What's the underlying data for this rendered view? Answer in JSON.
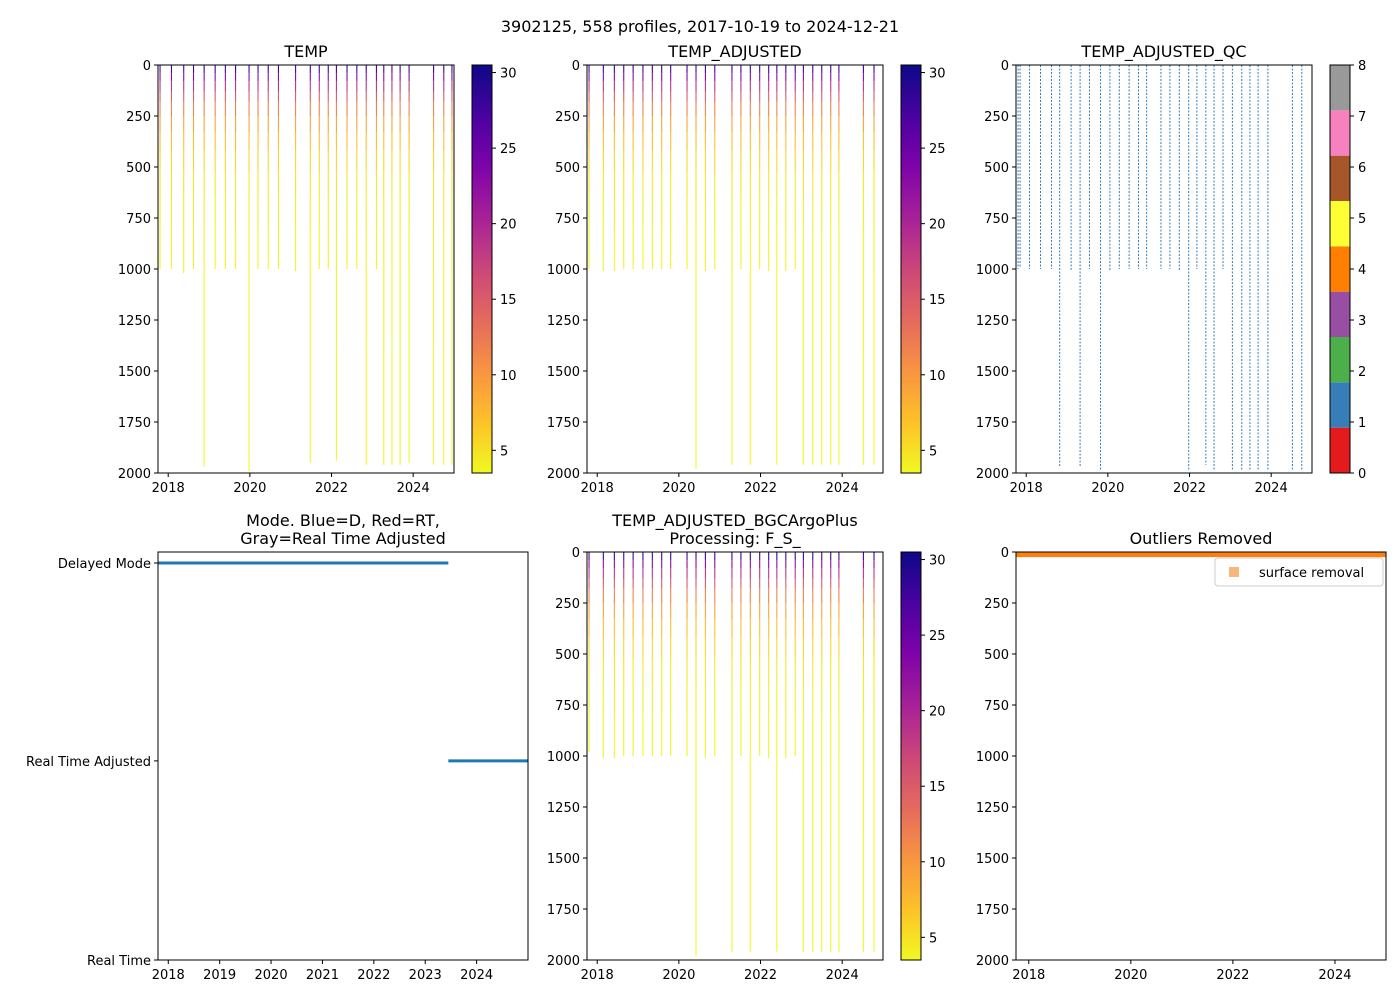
{
  "suptitle": "3902125, 558 profiles, 2017-10-19 to 2024-12-21",
  "colors": {
    "mode_line": "#1f77b4",
    "outlier": "#ff7f0e",
    "outlier_marker": "#f8b67a"
  },
  "chart_data": [
    {
      "id": "temp",
      "type": "heatmap",
      "title": "TEMP",
      "xlim": [
        2017.75,
        2025.0
      ],
      "ylim": [
        2000,
        0
      ],
      "xticks": [
        2018,
        2020,
        2022,
        2024
      ],
      "yticks": [
        0,
        250,
        500,
        750,
        1000,
        1250,
        1500,
        1750,
        2000
      ],
      "colorbar": {
        "colormap": "plasma_r",
        "range": [
          3.5,
          30.5
        ],
        "ticks": [
          5,
          10,
          15,
          20,
          25,
          30
        ]
      },
      "profiles": [
        {
          "t": 2017.8,
          "d": 1000
        },
        {
          "t": 2018.08,
          "d": 1000
        },
        {
          "t": 2018.38,
          "d": 1020
        },
        {
          "t": 2018.62,
          "d": 1000
        },
        {
          "t": 2018.88,
          "d": 1970
        },
        {
          "t": 2019.15,
          "d": 1000
        },
        {
          "t": 2019.4,
          "d": 1000
        },
        {
          "t": 2019.65,
          "d": 1000
        },
        {
          "t": 2019.98,
          "d": 1990
        },
        {
          "t": 2020.2,
          "d": 1000
        },
        {
          "t": 2020.45,
          "d": 1000
        },
        {
          "t": 2020.7,
          "d": 1000
        },
        {
          "t": 2021.12,
          "d": 1010
        },
        {
          "t": 2021.48,
          "d": 1950
        },
        {
          "t": 2021.7,
          "d": 1000
        },
        {
          "t": 2021.92,
          "d": 1000
        },
        {
          "t": 2022.12,
          "d": 1940
        },
        {
          "t": 2022.38,
          "d": 1000
        },
        {
          "t": 2022.62,
          "d": 1000
        },
        {
          "t": 2022.85,
          "d": 1960
        },
        {
          "t": 2023.1,
          "d": 1000
        },
        {
          "t": 2023.28,
          "d": 1960
        },
        {
          "t": 2023.48,
          "d": 1960
        },
        {
          "t": 2023.68,
          "d": 1960
        },
        {
          "t": 2023.9,
          "d": 1950
        },
        {
          "t": 2024.5,
          "d": 1960
        },
        {
          "t": 2024.75,
          "d": 1960
        },
        {
          "t": 2024.95,
          "d": 1960
        }
      ]
    },
    {
      "id": "temp_adj",
      "type": "heatmap",
      "title": "TEMP_ADJUSTED",
      "xlim": [
        2017.75,
        2025.0
      ],
      "ylim": [
        2000,
        0
      ],
      "xticks": [
        2018,
        2020,
        2022,
        2024
      ],
      "yticks": [
        0,
        250,
        500,
        750,
        1000,
        1250,
        1500,
        1750,
        2000
      ],
      "colorbar": {
        "colormap": "plasma_r",
        "range": [
          3.5,
          30.5
        ],
        "ticks": [
          5,
          10,
          15,
          20,
          25,
          30
        ]
      },
      "profiles": [
        {
          "t": 2017.8,
          "d": 1000
        },
        {
          "t": 2018.15,
          "d": 1010
        },
        {
          "t": 2018.42,
          "d": 1010
        },
        {
          "t": 2018.65,
          "d": 1000
        },
        {
          "t": 2018.88,
          "d": 1000
        },
        {
          "t": 2019.12,
          "d": 1000
        },
        {
          "t": 2019.35,
          "d": 1000
        },
        {
          "t": 2019.58,
          "d": 1000
        },
        {
          "t": 2019.8,
          "d": 1000
        },
        {
          "t": 2020.2,
          "d": 1000
        },
        {
          "t": 2020.42,
          "d": 1980
        },
        {
          "t": 2020.65,
          "d": 1010
        },
        {
          "t": 2020.88,
          "d": 1000
        },
        {
          "t": 2021.3,
          "d": 1960
        },
        {
          "t": 2021.52,
          "d": 1000
        },
        {
          "t": 2021.75,
          "d": 1960
        },
        {
          "t": 2021.98,
          "d": 1000
        },
        {
          "t": 2022.2,
          "d": 1010
        },
        {
          "t": 2022.4,
          "d": 1960
        },
        {
          "t": 2022.62,
          "d": 1010
        },
        {
          "t": 2022.85,
          "d": 1000
        },
        {
          "t": 2023.05,
          "d": 1960
        },
        {
          "t": 2023.28,
          "d": 1960
        },
        {
          "t": 2023.5,
          "d": 1960
        },
        {
          "t": 2023.72,
          "d": 1960
        },
        {
          "t": 2023.92,
          "d": 1960
        },
        {
          "t": 2024.52,
          "d": 1960
        },
        {
          "t": 2024.78,
          "d": 1960
        }
      ]
    },
    {
      "id": "temp_adj_qc",
      "type": "heatmap",
      "title": "TEMP_ADJUSTED_QC",
      "xlim": [
        2017.75,
        2025.0
      ],
      "ylim": [
        2000,
        0
      ],
      "xticks": [
        2018,
        2020,
        2022,
        2024
      ],
      "yticks": [
        0,
        250,
        500,
        750,
        1000,
        1250,
        1500,
        1750,
        2000
      ],
      "colorbar": {
        "categories": [
          0,
          1,
          2,
          3,
          4,
          5,
          6,
          7,
          8
        ],
        "colors": [
          "#e41a1c",
          "#377eb8",
          "#4daf4a",
          "#984ea3",
          "#ff7f00",
          "#ffff33",
          "#a65628",
          "#f781bf",
          "#999999"
        ]
      },
      "profiles": [
        {
          "t": 2017.8,
          "d": 1000
        },
        {
          "t": 2017.85,
          "d": 990
        },
        {
          "t": 2018.08,
          "d": 1000
        },
        {
          "t": 2018.35,
          "d": 1000
        },
        {
          "t": 2018.62,
          "d": 1000
        },
        {
          "t": 2018.82,
          "d": 1970
        },
        {
          "t": 2019.1,
          "d": 1010
        },
        {
          "t": 2019.32,
          "d": 1970
        },
        {
          "t": 2019.55,
          "d": 1000
        },
        {
          "t": 2019.82,
          "d": 1990
        },
        {
          "t": 2020.05,
          "d": 1010
        },
        {
          "t": 2020.28,
          "d": 1000
        },
        {
          "t": 2020.52,
          "d": 1000
        },
        {
          "t": 2020.75,
          "d": 1000
        },
        {
          "t": 2020.95,
          "d": 1000
        },
        {
          "t": 2021.3,
          "d": 1000
        },
        {
          "t": 2021.52,
          "d": 1000
        },
        {
          "t": 2021.75,
          "d": 1010
        },
        {
          "t": 2021.98,
          "d": 1990
        },
        {
          "t": 2022.18,
          "d": 1000
        },
        {
          "t": 2022.4,
          "d": 1960
        },
        {
          "t": 2022.6,
          "d": 1990
        },
        {
          "t": 2022.82,
          "d": 1000
        },
        {
          "t": 2023.05,
          "d": 1990
        },
        {
          "t": 2023.28,
          "d": 1990
        },
        {
          "t": 2023.48,
          "d": 1990
        },
        {
          "t": 2023.68,
          "d": 1990
        },
        {
          "t": 2023.92,
          "d": 1990
        },
        {
          "t": 2024.52,
          "d": 1990
        },
        {
          "t": 2024.75,
          "d": 1990
        }
      ]
    },
    {
      "id": "mode",
      "type": "line",
      "title_lines": [
        "Mode. Blue=D, Red=RT,",
        "Gray=Real Time Adjusted"
      ],
      "xlim": [
        2017.8,
        2025.0
      ],
      "xticks": [
        2018,
        2019,
        2020,
        2021,
        2022,
        2023,
        2024
      ],
      "ycategories": [
        "Real Time",
        "Real Time Adjusted",
        "Delayed Mode"
      ],
      "segments": [
        {
          "x": [
            2017.8,
            2023.45
          ],
          "y": "Delayed Mode"
        },
        {
          "x": [
            2023.45,
            2025.0
          ],
          "y": "Real Time Adjusted"
        }
      ]
    },
    {
      "id": "bgc",
      "type": "heatmap",
      "title_lines": [
        "TEMP_ADJUSTED_BGCArgoPlus",
        "Processing: F_S_"
      ],
      "xlim": [
        2017.75,
        2025.0
      ],
      "ylim": [
        2000,
        0
      ],
      "xticks": [
        2018,
        2020,
        2022,
        2024
      ],
      "yticks": [
        0,
        250,
        500,
        750,
        1000,
        1250,
        1500,
        1750,
        2000
      ],
      "colorbar": {
        "colormap": "plasma_r",
        "range": [
          3.5,
          30.5
        ],
        "ticks": [
          5,
          10,
          15,
          20,
          25,
          30
        ]
      },
      "profiles": [
        {
          "t": 2017.8,
          "d": 980
        },
        {
          "t": 2018.15,
          "d": 1010
        },
        {
          "t": 2018.42,
          "d": 1010
        },
        {
          "t": 2018.65,
          "d": 1000
        },
        {
          "t": 2018.88,
          "d": 1000
        },
        {
          "t": 2019.12,
          "d": 1000
        },
        {
          "t": 2019.35,
          "d": 1000
        },
        {
          "t": 2019.58,
          "d": 1000
        },
        {
          "t": 2019.8,
          "d": 1000
        },
        {
          "t": 2020.2,
          "d": 1000
        },
        {
          "t": 2020.42,
          "d": 1980
        },
        {
          "t": 2020.65,
          "d": 1010
        },
        {
          "t": 2020.88,
          "d": 1000
        },
        {
          "t": 2021.3,
          "d": 1960
        },
        {
          "t": 2021.52,
          "d": 1000
        },
        {
          "t": 2021.75,
          "d": 1960
        },
        {
          "t": 2021.98,
          "d": 1000
        },
        {
          "t": 2022.2,
          "d": 1010
        },
        {
          "t": 2022.4,
          "d": 1960
        },
        {
          "t": 2022.62,
          "d": 1010
        },
        {
          "t": 2022.85,
          "d": 1000
        },
        {
          "t": 2023.05,
          "d": 1960
        },
        {
          "t": 2023.28,
          "d": 1960
        },
        {
          "t": 2023.5,
          "d": 1960
        },
        {
          "t": 2023.72,
          "d": 1960
        },
        {
          "t": 2023.92,
          "d": 1960
        },
        {
          "t": 2024.52,
          "d": 1960
        },
        {
          "t": 2024.78,
          "d": 1960
        }
      ]
    },
    {
      "id": "outliers",
      "type": "scatter",
      "title": "Outliers Removed",
      "xlim": [
        2017.75,
        2025.0
      ],
      "ylim": [
        2000,
        0
      ],
      "xticks": [
        2018,
        2020,
        2022,
        2024
      ],
      "yticks": [
        0,
        250,
        500,
        750,
        1000,
        1250,
        1500,
        1750,
        2000
      ],
      "series": [
        {
          "name": "surface removal",
          "x_range": [
            2017.75,
            2025.0
          ],
          "depth_range": [
            0,
            25
          ]
        }
      ],
      "legend": {
        "label": "surface removal",
        "loc": "upper right"
      }
    }
  ]
}
